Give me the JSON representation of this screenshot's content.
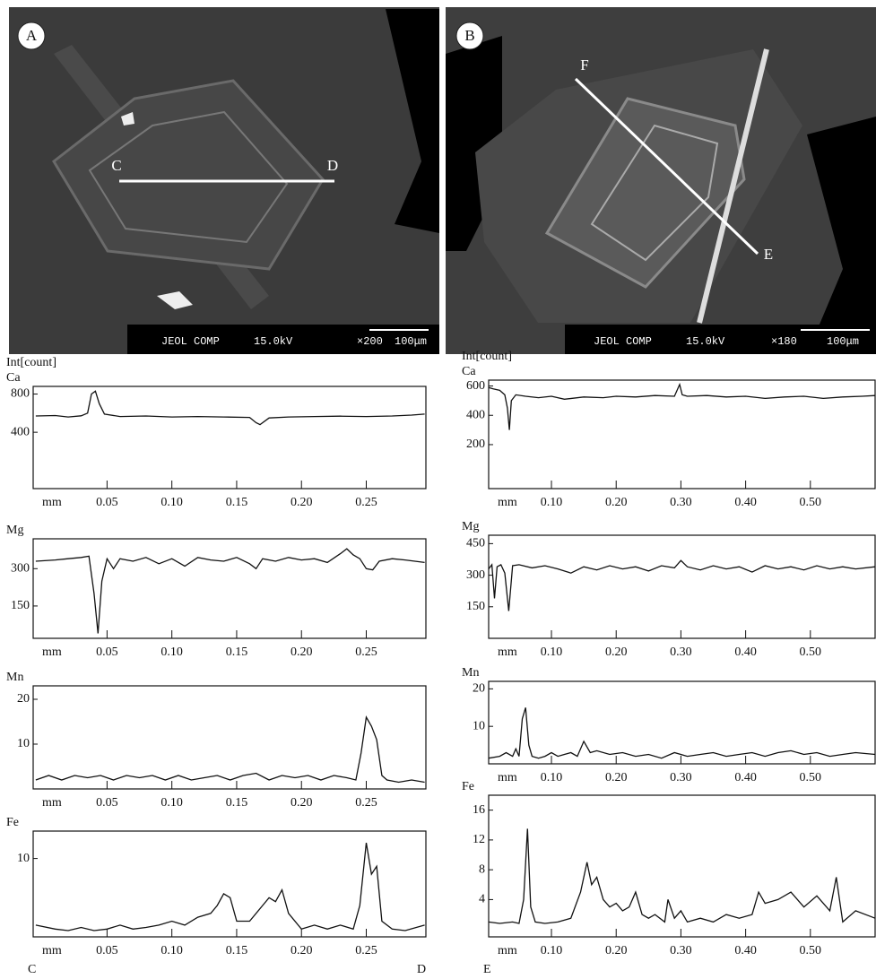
{
  "images": [
    {
      "label": "A",
      "line_start": "C",
      "line_end": "D",
      "instrument": "JEOL COMP",
      "voltage": "15.0kV",
      "magnification": "×200",
      "scale": "100μm"
    },
    {
      "label": "B",
      "line_start": "F",
      "line_end": "E",
      "instrument": "JEOL COMP",
      "voltage": "15.0kV",
      "magnification": "×180",
      "scale": "100μm"
    }
  ],
  "chart_data": [
    {
      "type": "line",
      "header": "Int[count]",
      "ylabel": "Ca",
      "xlabel": "mm",
      "color": "#111111",
      "xlim": [
        -0.007,
        0.296
      ],
      "xticks": [
        0.05,
        {
          "value": 0.1,
          "label": "0.10"
        },
        0.15,
        {
          "value": 0.2,
          "label": "0.20"
        },
        0.25
      ],
      "ylim": [
        -190,
        880
      ],
      "yticks": [
        400,
        800
      ],
      "x": [
        -0.005,
        0.01,
        0.02,
        0.03,
        0.035,
        0.038,
        0.041,
        0.044,
        0.048,
        0.06,
        0.08,
        0.1,
        0.12,
        0.14,
        0.16,
        0.165,
        0.168,
        0.175,
        0.19,
        0.21,
        0.23,
        0.25,
        0.27,
        0.285,
        0.295
      ],
      "values": [
        570,
        575,
        560,
        572,
        600,
        800,
        830,
        700,
        590,
        565,
        570,
        560,
        565,
        560,
        555,
        500,
        480,
        550,
        560,
        565,
        568,
        565,
        570,
        580,
        590
      ]
    },
    {
      "type": "line",
      "ylabel": "Mg",
      "xlabel": "mm",
      "color": "#111111",
      "xlim": [
        -0.007,
        0.296
      ],
      "xticks": [
        0.05,
        {
          "value": 0.1,
          "label": "0.10"
        },
        0.15,
        {
          "value": 0.2,
          "label": "0.20"
        },
        0.25
      ],
      "ylim": [
        20,
        420
      ],
      "yticks": [
        150,
        300
      ],
      "x": [
        -0.005,
        0.01,
        0.02,
        0.03,
        0.036,
        0.04,
        0.043,
        0.046,
        0.05,
        0.055,
        0.06,
        0.07,
        0.08,
        0.09,
        0.1,
        0.11,
        0.12,
        0.13,
        0.14,
        0.15,
        0.16,
        0.165,
        0.17,
        0.18,
        0.19,
        0.2,
        0.21,
        0.22,
        0.23,
        0.235,
        0.24,
        0.245,
        0.25,
        0.255,
        0.26,
        0.27,
        0.28,
        0.295
      ],
      "values": [
        330,
        335,
        340,
        345,
        350,
        200,
        40,
        250,
        340,
        300,
        340,
        330,
        345,
        320,
        340,
        310,
        345,
        335,
        330,
        345,
        320,
        300,
        340,
        330,
        345,
        335,
        340,
        325,
        360,
        380,
        355,
        340,
        300,
        295,
        330,
        340,
        335,
        325
      ]
    },
    {
      "type": "line",
      "ylabel": "Mn",
      "xlabel": "mm",
      "color": "#111111",
      "xlim": [
        -0.007,
        0.296
      ],
      "xticks": [
        0.05,
        {
          "value": 0.1,
          "label": "0.10"
        },
        0.15,
        {
          "value": 0.2,
          "label": "0.20"
        },
        0.25
      ],
      "ylim": [
        0,
        23
      ],
      "yticks": [
        10,
        20
      ],
      "x": [
        -0.005,
        0.005,
        0.015,
        0.025,
        0.035,
        0.045,
        0.055,
        0.065,
        0.075,
        0.085,
        0.095,
        0.105,
        0.115,
        0.125,
        0.135,
        0.145,
        0.155,
        0.165,
        0.175,
        0.185,
        0.195,
        0.205,
        0.215,
        0.225,
        0.235,
        0.242,
        0.246,
        0.25,
        0.254,
        0.258,
        0.262,
        0.266,
        0.275,
        0.285,
        0.295
      ],
      "values": [
        2,
        3,
        2,
        3,
        2.5,
        3,
        2,
        3,
        2.5,
        3,
        2,
        3,
        2,
        2.5,
        3,
        2,
        3,
        3.5,
        2,
        3,
        2.5,
        3,
        2,
        3,
        2.5,
        2,
        8,
        16,
        14,
        11,
        3,
        2,
        1.5,
        2,
        1.5
      ]
    },
    {
      "type": "line",
      "ylabel": "Fe",
      "xlabel": "mm",
      "color": "#111111",
      "start_label": "C",
      "end_label": "D",
      "xlim": [
        -0.007,
        0.296
      ],
      "xticks": [
        0.05,
        {
          "value": 0.1,
          "label": "0.10"
        },
        0.15,
        {
          "value": 0.2,
          "label": "0.20"
        },
        0.25
      ],
      "ylim": [
        0,
        13.5
      ],
      "yticks": [
        10
      ],
      "x": [
        -0.005,
        0.01,
        0.02,
        0.03,
        0.04,
        0.05,
        0.06,
        0.07,
        0.08,
        0.09,
        0.1,
        0.11,
        0.12,
        0.13,
        0.135,
        0.14,
        0.145,
        0.15,
        0.16,
        0.17,
        0.175,
        0.18,
        0.185,
        0.19,
        0.2,
        0.21,
        0.22,
        0.23,
        0.24,
        0.245,
        0.25,
        0.254,
        0.258,
        0.262,
        0.27,
        0.28,
        0.295
      ],
      "values": [
        1.5,
        1,
        0.8,
        1.2,
        0.8,
        1,
        1.5,
        1,
        1.2,
        1.5,
        2,
        1.5,
        2.5,
        3,
        4,
        5.5,
        5,
        2,
        2,
        4,
        5,
        4.5,
        6,
        3,
        1,
        1.5,
        1,
        1.5,
        1,
        4,
        12,
        8,
        9,
        2,
        1,
        0.8,
        1.5
      ]
    },
    {
      "type": "line",
      "header": "Int[count]",
      "ylabel": "Ca",
      "xlabel": "mm",
      "color": "#111111",
      "xlim": [
        0.003,
        0.6
      ],
      "xticks": [
        {
          "value": 0.1,
          "label": "0.10"
        },
        {
          "value": 0.2,
          "label": "0.20"
        },
        {
          "value": 0.3,
          "label": "0.30"
        },
        {
          "value": 0.4,
          "label": "0.40"
        },
        {
          "value": 0.5,
          "label": "0.50"
        }
      ],
      "ylim": [
        -100,
        640
      ],
      "yticks": [
        200,
        400,
        600
      ],
      "x": [
        0.003,
        0.01,
        0.02,
        0.028,
        0.032,
        0.035,
        0.038,
        0.045,
        0.06,
        0.08,
        0.1,
        0.12,
        0.15,
        0.18,
        0.2,
        0.23,
        0.26,
        0.29,
        0.298,
        0.302,
        0.31,
        0.34,
        0.37,
        0.4,
        0.43,
        0.46,
        0.49,
        0.52,
        0.55,
        0.58,
        0.6
      ],
      "values": [
        590,
        580,
        570,
        540,
        450,
        300,
        500,
        540,
        530,
        520,
        530,
        510,
        525,
        520,
        530,
        525,
        535,
        530,
        610,
        540,
        530,
        535,
        525,
        530,
        515,
        525,
        530,
        515,
        525,
        530,
        535
      ]
    },
    {
      "type": "line",
      "ylabel": "Mg",
      "xlabel": "mm",
      "color": "#111111",
      "xlim": [
        0.003,
        0.6
      ],
      "xticks": [
        {
          "value": 0.1,
          "label": "0.10"
        },
        {
          "value": 0.2,
          "label": "0.20"
        },
        {
          "value": 0.3,
          "label": "0.30"
        },
        {
          "value": 0.4,
          "label": "0.40"
        },
        {
          "value": 0.5,
          "label": "0.50"
        }
      ],
      "ylim": [
        0,
        490
      ],
      "yticks": [
        150,
        300,
        450
      ],
      "x": [
        0.003,
        0.008,
        0.012,
        0.016,
        0.022,
        0.028,
        0.034,
        0.04,
        0.05,
        0.07,
        0.09,
        0.11,
        0.13,
        0.15,
        0.17,
        0.19,
        0.21,
        0.23,
        0.25,
        0.27,
        0.29,
        0.3,
        0.31,
        0.33,
        0.35,
        0.37,
        0.39,
        0.41,
        0.43,
        0.45,
        0.47,
        0.49,
        0.51,
        0.53,
        0.55,
        0.57,
        0.6
      ],
      "values": [
        330,
        350,
        190,
        340,
        350,
        310,
        130,
        345,
        350,
        335,
        345,
        330,
        310,
        340,
        325,
        345,
        330,
        340,
        320,
        345,
        335,
        370,
        340,
        325,
        345,
        330,
        340,
        315,
        345,
        330,
        340,
        325,
        345,
        330,
        340,
        330,
        340
      ]
    },
    {
      "type": "line",
      "ylabel": "Mn",
      "xlabel": "mm",
      "color": "#111111",
      "xlim": [
        0.003,
        0.6
      ],
      "xticks": [
        {
          "value": 0.1,
          "label": "0.10"
        },
        {
          "value": 0.2,
          "label": "0.20"
        },
        {
          "value": 0.3,
          "label": "0.30"
        },
        {
          "value": 0.4,
          "label": "0.40"
        },
        {
          "value": 0.5,
          "label": "0.50"
        }
      ],
      "ylim": [
        0,
        22
      ],
      "yticks": [
        10,
        20
      ],
      "x": [
        0.003,
        0.02,
        0.03,
        0.04,
        0.045,
        0.05,
        0.055,
        0.06,
        0.065,
        0.07,
        0.08,
        0.09,
        0.1,
        0.11,
        0.12,
        0.13,
        0.14,
        0.15,
        0.16,
        0.17,
        0.19,
        0.21,
        0.23,
        0.25,
        0.27,
        0.29,
        0.31,
        0.33,
        0.35,
        0.37,
        0.39,
        0.41,
        0.43,
        0.45,
        0.47,
        0.49,
        0.51,
        0.53,
        0.55,
        0.57,
        0.6
      ],
      "values": [
        1.5,
        2,
        3,
        2,
        4,
        2,
        12,
        15,
        5,
        2,
        1.5,
        2,
        3,
        2,
        2.5,
        3,
        2,
        6,
        3,
        3.5,
        2.5,
        3,
        2,
        2.5,
        1.5,
        3,
        2,
        2.5,
        3,
        2,
        2.5,
        3,
        2,
        3,
        3.5,
        2.5,
        3,
        2,
        2.5,
        3,
        2.5
      ]
    },
    {
      "type": "line",
      "ylabel": "Fe",
      "xlabel": "mm",
      "color": "#111111",
      "start_label": "E",
      "xlim": [
        0.003,
        0.6
      ],
      "xticks": [
        {
          "value": 0.1,
          "label": "0.10"
        },
        {
          "value": 0.2,
          "label": "0.20"
        },
        {
          "value": 0.3,
          "label": "0.30"
        },
        {
          "value": 0.4,
          "label": "0.40"
        },
        {
          "value": 0.5,
          "label": "0.50"
        }
      ],
      "ylim": [
        -1,
        18
      ],
      "yticks": [
        4,
        8,
        12,
        16
      ],
      "x": [
        0.003,
        0.02,
        0.04,
        0.05,
        0.057,
        0.063,
        0.068,
        0.075,
        0.09,
        0.11,
        0.13,
        0.145,
        0.155,
        0.162,
        0.17,
        0.18,
        0.19,
        0.2,
        0.21,
        0.22,
        0.23,
        0.24,
        0.25,
        0.26,
        0.275,
        0.28,
        0.29,
        0.3,
        0.31,
        0.33,
        0.35,
        0.37,
        0.39,
        0.41,
        0.42,
        0.43,
        0.45,
        0.47,
        0.49,
        0.51,
        0.53,
        0.54,
        0.55,
        0.57,
        0.6
      ],
      "values": [
        1,
        0.8,
        1,
        0.8,
        4,
        13.5,
        3,
        1,
        0.8,
        1,
        1.5,
        5,
        9,
        6,
        7,
        4,
        3,
        3.5,
        2.5,
        3,
        5,
        2,
        1.5,
        2,
        1,
        4,
        1.5,
        2.5,
        1,
        1.5,
        1,
        2,
        1.5,
        2,
        5,
        3.5,
        4,
        5,
        3,
        4.5,
        2.5,
        7,
        1,
        2.5,
        1.5
      ]
    }
  ]
}
